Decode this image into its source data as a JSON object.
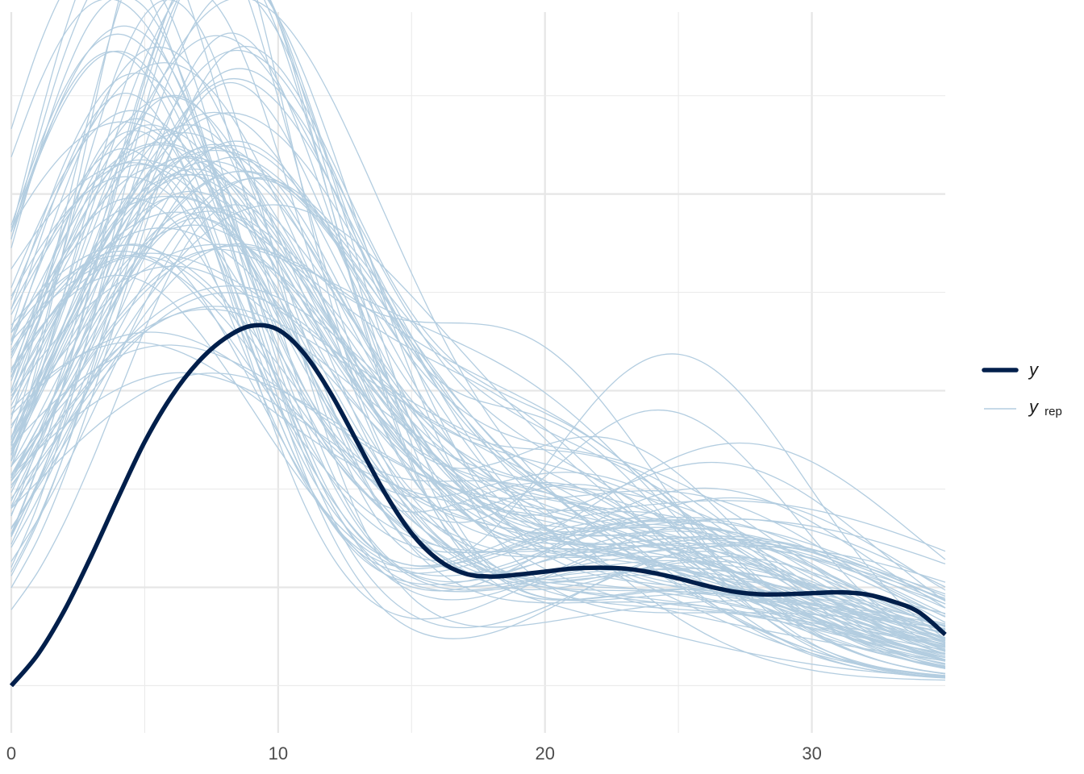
{
  "chart_data": {
    "type": "line",
    "title": "",
    "xlabel": "",
    "ylabel": "",
    "xlim": [
      0,
      35
    ],
    "ylim": [
      -0.0048,
      0.0685
    ],
    "x_ticks": [
      0,
      10,
      20,
      30
    ],
    "x_tick_labels": [
      "0",
      "10",
      "20",
      "30"
    ],
    "y_ticks_shown": false,
    "grid": true,
    "legend_position": "right",
    "colors": {
      "y": "#011f4b",
      "yrep": "#b3cde0"
    },
    "series": [
      {
        "name": "y",
        "role": "observed",
        "x": [
          0,
          1,
          2,
          3,
          4,
          5,
          6,
          7,
          8,
          9,
          10,
          11,
          12,
          13,
          14,
          15,
          16,
          17,
          18,
          19,
          20,
          21,
          22,
          23,
          24,
          25,
          26,
          27,
          28,
          29,
          30,
          31,
          32,
          33,
          34,
          35
        ],
        "y": [
          0.0,
          0.0032,
          0.0077,
          0.0132,
          0.0191,
          0.0248,
          0.0294,
          0.0329,
          0.0353,
          0.0366,
          0.0362,
          0.0337,
          0.0296,
          0.0246,
          0.0196,
          0.0155,
          0.0128,
          0.0114,
          0.0111,
          0.0113,
          0.0116,
          0.0119,
          0.012,
          0.0119,
          0.0115,
          0.0109,
          0.0102,
          0.0096,
          0.0093,
          0.0093,
          0.0094,
          0.0095,
          0.0093,
          0.0086,
          0.0075,
          0.0052
        ]
      },
      {
        "name": "y_rep",
        "role": "replicated",
        "draws": 100
      }
    ]
  },
  "legend": {
    "y_label": "y",
    "yrep_label": "y",
    "yrep_subscript": "rep"
  }
}
